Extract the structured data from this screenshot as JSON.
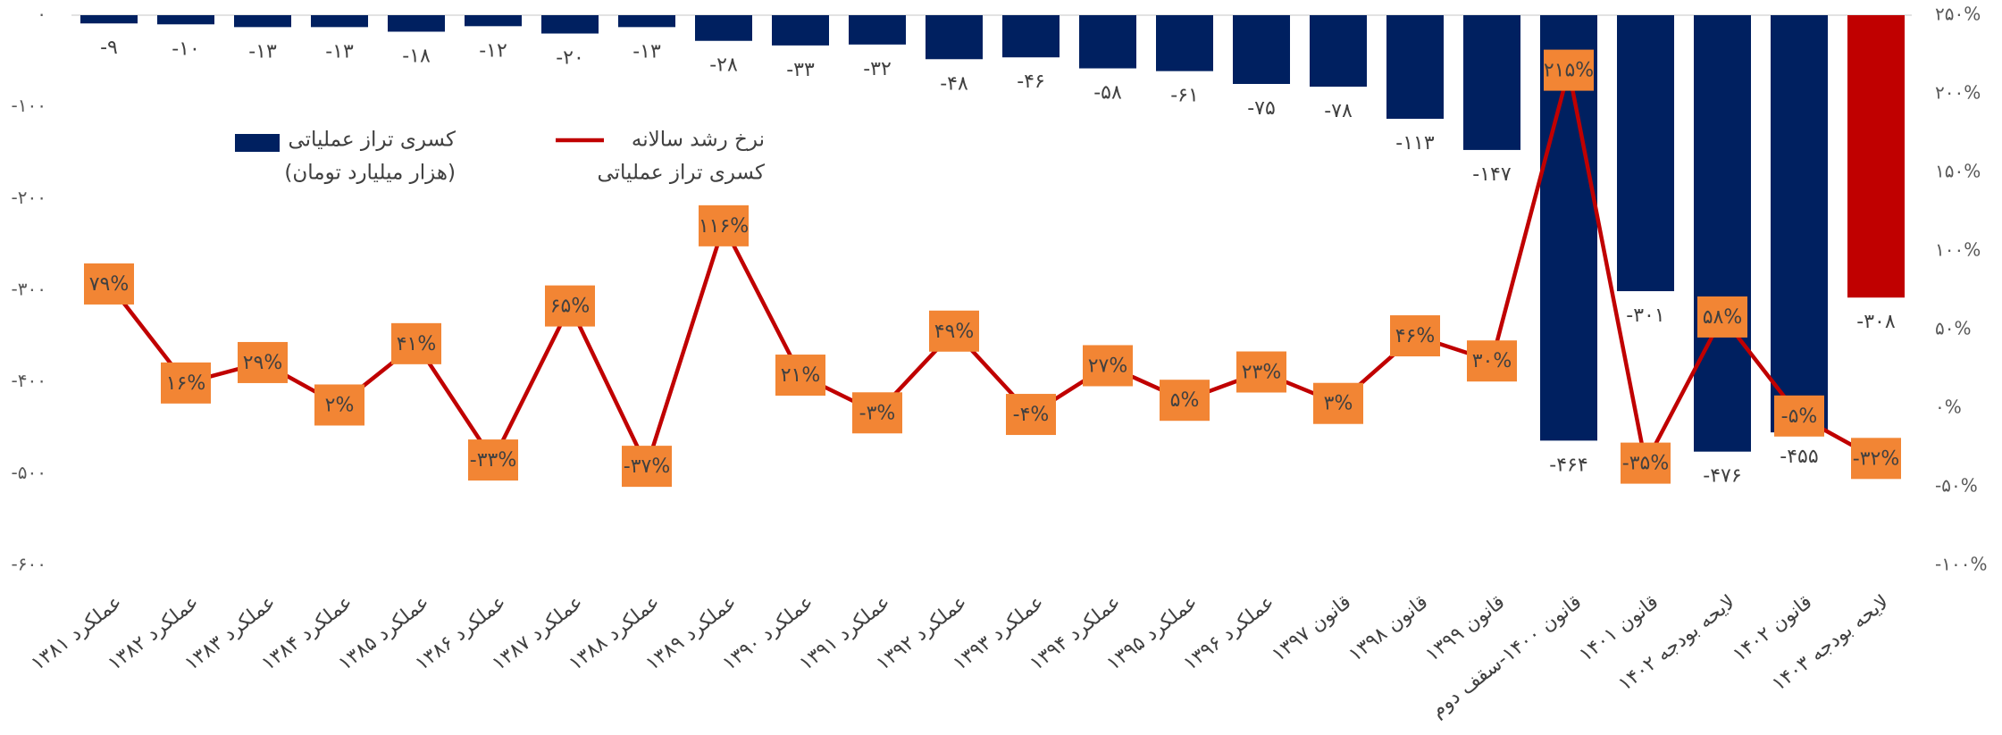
{
  "chart_data": {
    "type": "bar_line",
    "categories": [
      "عملکرد ۱۳۸۱",
      "عملکرد ۱۳۸۲",
      "عملکرد ۱۳۸۳",
      "عملکرد ۱۳۸۴",
      "عملکرد ۱۳۸۵",
      "عملکرد ۱۳۸۶",
      "عملکرد ۱۳۸۷",
      "عملکرد ۱۳۸۸",
      "عملکرد ۱۳۸۹",
      "عملکرد ۱۳۹۰",
      "عملکرد ۱۳۹۱",
      "عملکرد ۱۳۹۲",
      "عملکرد ۱۳۹۳",
      "عملکرد ۱۳۹۴",
      "عملکرد ۱۳۹۵",
      "عملکرد ۱۳۹۶",
      "قانون ۱۳۹۷",
      "قانون ۱۳۹۸",
      "قانون ۱۳۹۹",
      "قانون ۱۴۰۰-سقف دوم",
      "قانون ۱۴۰۱",
      "لایحه بودجه ۱۴۰۲",
      "قانون ۱۴۰۲",
      "لایحه بودجه ۱۴۰۳"
    ],
    "series": [
      {
        "name": [
          "کسری تراز عملیاتی",
          "(هزار میلیارد تومان)"
        ],
        "kind": "bar",
        "color": "#002060",
        "colors": [
          "#002060",
          "#002060",
          "#002060",
          "#002060",
          "#002060",
          "#002060",
          "#002060",
          "#002060",
          "#002060",
          "#002060",
          "#002060",
          "#002060",
          "#002060",
          "#002060",
          "#002060",
          "#002060",
          "#002060",
          "#002060",
          "#002060",
          "#002060",
          "#002060",
          "#002060",
          "#002060",
          "#c00000"
        ],
        "values": [
          -9,
          -10,
          -13,
          -13,
          -18,
          -12,
          -20,
          -13,
          -28,
          -33,
          -32,
          -48,
          -46,
          -58,
          -61,
          -75,
          -78,
          -113,
          -147,
          -464,
          -301,
          -476,
          -455,
          -308
        ],
        "value_labels": [
          "-۹",
          "-۱۰",
          "-۱۳",
          "-۱۳",
          "-۱۸",
          "-۱۲",
          "-۲۰",
          "-۱۳",
          "-۲۸",
          "-۳۳",
          "-۳۲",
          "-۴۸",
          "-۴۶",
          "-۵۸",
          "-۶۱",
          "-۷۵",
          "-۷۸",
          "-۱۱۳",
          "-۱۴۷",
          "-۴۶۴",
          "-۳۰۱",
          "-۴۷۶",
          "-۴۵۵",
          "-۳۰۸"
        ]
      },
      {
        "name": [
          "نرخ رشد سالانه",
          "کسری تراز عملیاتی"
        ],
        "kind": "line",
        "axis": "y2",
        "color": "#c00000",
        "label_color": "#f28534",
        "values": [
          79,
          16,
          29,
          2,
          41,
          -33,
          65,
          -37,
          116,
          21,
          -3,
          49,
          -4,
          27,
          5,
          23,
          3,
          46,
          30,
          215,
          -35,
          58,
          -5,
          -32
        ],
        "value_labels": [
          "۷۹%",
          "۱۶%",
          "۲۹%",
          "۲%",
          "۴۱%",
          "-۳۳%",
          "۶۵%",
          "-۳۷%",
          "۱۱۶%",
          "۲۱%",
          "-۳%",
          "۴۹%",
          "-۴%",
          "۲۷%",
          "۵%",
          "۲۳%",
          "۳%",
          "۴۶%",
          "۳۰%",
          "۲۱۵%",
          "-۳۵%",
          "۵۸%",
          "-۵%",
          "-۳۲%"
        ]
      }
    ],
    "ylim": [
      -600,
      0
    ],
    "yticks": [
      {
        "value": 0,
        "label": "۰"
      },
      {
        "value": -100,
        "label": "-۱۰۰"
      },
      {
        "value": -200,
        "label": "-۲۰۰"
      },
      {
        "value": -300,
        "label": "-۳۰۰"
      },
      {
        "value": -400,
        "label": "-۴۰۰"
      },
      {
        "value": -500,
        "label": "-۵۰۰"
      },
      {
        "value": -600,
        "label": "-۶۰۰"
      }
    ],
    "y2lim": [
      -100,
      250
    ],
    "y2ticks": [
      {
        "value": 250,
        "label": "۲۵۰%"
      },
      {
        "value": 200,
        "label": "۲۰۰%"
      },
      {
        "value": 150,
        "label": "۱۵۰%"
      },
      {
        "value": 100,
        "label": "۱۰۰%"
      },
      {
        "value": 50,
        "label": "۵۰%"
      },
      {
        "value": 0,
        "label": "۰%"
      },
      {
        "value": -50,
        "label": "-۵۰%"
      },
      {
        "value": -100,
        "label": "-۱۰۰%"
      }
    ]
  }
}
